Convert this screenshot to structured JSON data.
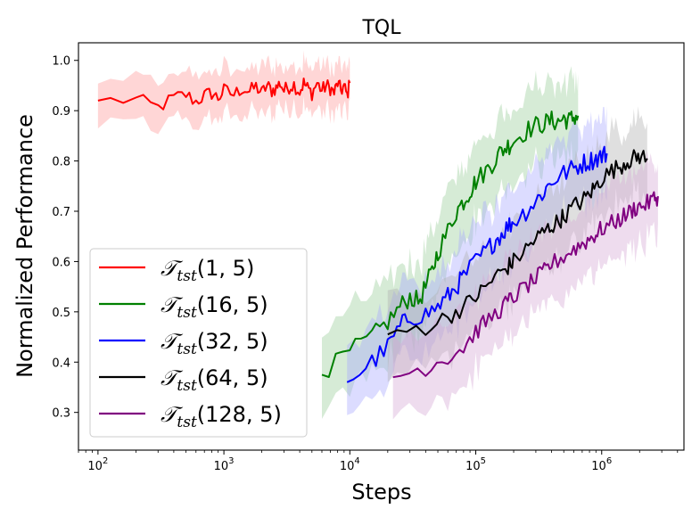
{
  "chart_data": {
    "type": "line",
    "title": "TQL",
    "xlabel": "Steps",
    "ylabel": "Normalized Performance",
    "xscale": "log",
    "xlim": [
      70,
      4500000
    ],
    "ylim": [
      0.225,
      1.035
    ],
    "x_ticks": [
      {
        "value": 100,
        "base": "10",
        "exp": "2"
      },
      {
        "value": 1000,
        "base": "10",
        "exp": "3"
      },
      {
        "value": 10000,
        "base": "10",
        "exp": "4"
      },
      {
        "value": 100000,
        "base": "10",
        "exp": "5"
      },
      {
        "value": 1000000,
        "base": "10",
        "exp": "6"
      }
    ],
    "y_ticks": [
      {
        "value": 0.3,
        "label": "0.3"
      },
      {
        "value": 0.4,
        "label": "0.4"
      },
      {
        "value": 0.5,
        "label": "0.5"
      },
      {
        "value": 0.6,
        "label": "0.6"
      },
      {
        "value": 0.7,
        "label": "0.7"
      },
      {
        "value": 0.8,
        "label": "0.8"
      },
      {
        "value": 0.9,
        "label": "0.9"
      },
      {
        "value": 1.0,
        "label": "1.0"
      }
    ],
    "legend_position": "lower-left",
    "series": [
      {
        "name": "T_tst(1, 5)",
        "label_symbol": "𝒯",
        "label_sub": "tst",
        "label_args": "(1, 5)",
        "color": "#ff0000",
        "fill": "#ff9999",
        "band": 0.045,
        "noise": 0.015,
        "x": [
          100,
          200,
          300,
          400,
          500,
          600,
          700,
          800,
          900,
          1000,
          1200,
          1400,
          1600,
          1800,
          2000,
          2200,
          2400,
          2600,
          2800,
          3000,
          3300,
          3600,
          4000,
          4300,
          4600,
          5000,
          5500,
          6000,
          6500,
          7000,
          7500,
          8000,
          8500,
          9000,
          9500,
          10000
        ],
        "y": [
          0.92,
          0.922,
          0.906,
          0.925,
          0.932,
          0.918,
          0.93,
          0.935,
          0.925,
          0.94,
          0.932,
          0.945,
          0.938,
          0.948,
          0.935,
          0.95,
          0.94,
          0.945,
          0.955,
          0.94,
          0.948,
          0.952,
          0.938,
          0.955,
          0.945,
          0.935,
          0.955,
          0.94,
          0.95,
          0.945,
          0.935,
          0.955,
          0.94,
          0.948,
          0.93,
          0.955
        ]
      },
      {
        "name": "T_tst(16, 5)",
        "label_symbol": "𝒯",
        "label_sub": "tst",
        "label_args": "(16, 5)",
        "color": "#008000",
        "fill": "#99cc99",
        "band": 0.075,
        "noise": 0.02,
        "x": [
          6000,
          10000,
          15000,
          20000,
          25000,
          30000,
          35000,
          40000,
          45000,
          50000,
          60000,
          70000,
          80000,
          90000,
          100000,
          120000,
          140000,
          160000,
          180000,
          200000,
          250000,
          300000,
          350000,
          400000,
          450000,
          500000,
          550000,
          600000,
          650000
        ],
        "y": [
          0.375,
          0.42,
          0.45,
          0.48,
          0.51,
          0.53,
          0.52,
          0.55,
          0.58,
          0.62,
          0.66,
          0.7,
          0.72,
          0.74,
          0.76,
          0.78,
          0.8,
          0.82,
          0.83,
          0.84,
          0.86,
          0.87,
          0.875,
          0.88,
          0.878,
          0.885,
          0.88,
          0.887,
          0.89
        ]
      },
      {
        "name": "T_tst(32, 5)",
        "label_symbol": "𝒯",
        "label_sub": "tst",
        "label_args": "(32, 5)",
        "color": "#0000ff",
        "fill": "#a8a8ff",
        "band": 0.075,
        "noise": 0.02,
        "x": [
          9500,
          15000,
          20000,
          25000,
          30000,
          40000,
          50000,
          60000,
          70000,
          80000,
          100000,
          120000,
          140000,
          160000,
          180000,
          200000,
          250000,
          300000,
          350000,
          400000,
          500000,
          600000,
          700000,
          800000,
          900000,
          1000000,
          1100000
        ],
        "y": [
          0.36,
          0.4,
          0.43,
          0.47,
          0.49,
          0.495,
          0.51,
          0.53,
          0.55,
          0.57,
          0.6,
          0.62,
          0.64,
          0.655,
          0.67,
          0.68,
          0.7,
          0.72,
          0.74,
          0.76,
          0.775,
          0.785,
          0.795,
          0.8,
          0.805,
          0.81,
          0.815
        ]
      },
      {
        "name": "T_tst(64, 5)",
        "label_symbol": "𝒯",
        "label_sub": "tst",
        "label_args": "(64, 5)",
        "color": "#000000",
        "fill": "#b0b0b0",
        "band": 0.075,
        "noise": 0.018,
        "x": [
          20000,
          40000,
          60000,
          80000,
          100000,
          120000,
          150000,
          180000,
          200000,
          250000,
          300000,
          350000,
          400000,
          450000,
          500000,
          600000,
          700000,
          800000,
          900000,
          1000000,
          1200000,
          1400000,
          1600000,
          1800000,
          2000000,
          2300000
        ],
        "y": [
          0.455,
          0.47,
          0.49,
          0.51,
          0.53,
          0.55,
          0.575,
          0.59,
          0.6,
          0.625,
          0.645,
          0.66,
          0.67,
          0.68,
          0.69,
          0.71,
          0.72,
          0.735,
          0.75,
          0.765,
          0.78,
          0.79,
          0.8,
          0.805,
          0.81,
          0.805
        ]
      },
      {
        "name": "T_tst(128, 5)",
        "label_symbol": "𝒯",
        "label_sub": "tst",
        "label_args": "(128, 5)",
        "color": "#800080",
        "fill": "#d5a8d5",
        "band": 0.075,
        "noise": 0.018,
        "x": [
          22000,
          40000,
          60000,
          80000,
          100000,
          120000,
          150000,
          180000,
          200000,
          250000,
          300000,
          350000,
          400000,
          500000,
          600000,
          700000,
          800000,
          900000,
          1000000,
          1200000,
          1400000,
          1600000,
          1800000,
          2000000,
          2300000,
          2600000,
          2800000
        ],
        "y": [
          0.37,
          0.39,
          0.41,
          0.43,
          0.46,
          0.48,
          0.5,
          0.52,
          0.53,
          0.55,
          0.565,
          0.58,
          0.595,
          0.61,
          0.625,
          0.635,
          0.645,
          0.655,
          0.665,
          0.675,
          0.685,
          0.695,
          0.705,
          0.71,
          0.715,
          0.725,
          0.73
        ]
      }
    ]
  }
}
